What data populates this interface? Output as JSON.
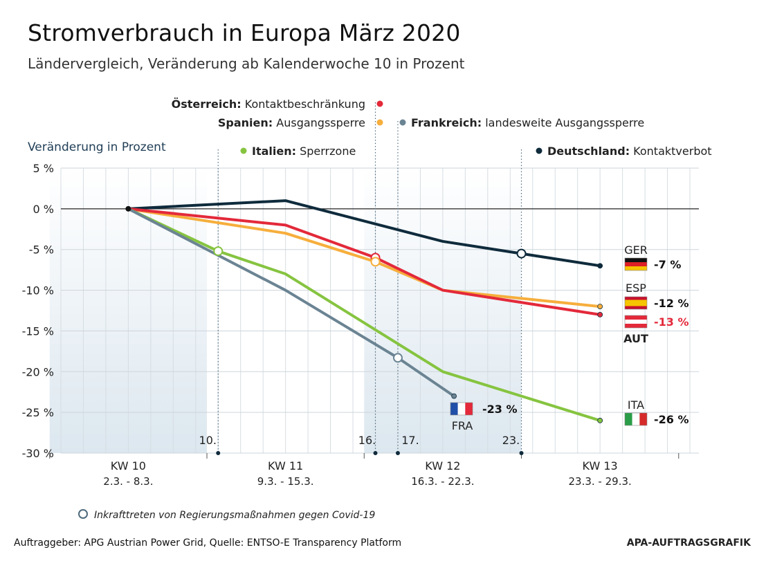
{
  "title": "Stromverbrauch in Europa März 2020",
  "subtitle": "Ländervergleich, Veränderung ab Kalenderwoche 10 in Prozent",
  "footer": {
    "source": "Auftraggeber: APG Austrian Power Grid, Quelle: ENTSO-E Transparency Platform",
    "credit": "APA-AUFTRAGSGRAFIK"
  },
  "legend_note": "Inkrafttreten von Regierungsmaßnahmen gegen Covid-19",
  "chart_data": {
    "type": "line",
    "ylabel": "Veränderung in Prozent",
    "ylim": [
      -30,
      5
    ],
    "yticks": [
      5,
      0,
      -5,
      -10,
      -15,
      -20,
      -25,
      -30
    ],
    "ytick_labels": [
      "5 %",
      "0 %",
      "-5 %",
      "-10 %",
      "-15 %",
      "-20 %",
      "-25 %",
      "-30 %"
    ],
    "x_unit": "Tage März 2020",
    "xlim": [
      1,
      30
    ],
    "weeks": [
      {
        "label": "KW 10",
        "range": "2.3. - 8.3.",
        "x": 5
      },
      {
        "label": "KW 11",
        "range": "9.3. - 15.3.",
        "x": 12
      },
      {
        "label": "KW 12",
        "range": "16.3. - 22.3.",
        "x": 19
      },
      {
        "label": "KW 13",
        "range": "23.3. - 29.3.",
        "x": 26
      }
    ],
    "shaded_weeks": [
      [
        1.5,
        8.5
      ],
      [
        15.5,
        22.5
      ]
    ],
    "grid": true,
    "series": [
      {
        "name": "GER",
        "color": "#0f2b3c",
        "end_label": "-7 %",
        "flag": "germany",
        "points": [
          [
            5,
            0
          ],
          [
            12,
            1
          ],
          [
            19,
            -4
          ],
          [
            22.5,
            -5.5
          ],
          [
            26,
            -7
          ]
        ]
      },
      {
        "name": "ESP",
        "color": "#f6ae3c",
        "end_label": "-12 %",
        "flag": "spain",
        "points": [
          [
            5,
            0
          ],
          [
            12,
            -3
          ],
          [
            16,
            -6.5
          ],
          [
            19,
            -10
          ],
          [
            26,
            -12
          ]
        ]
      },
      {
        "name": "AUT",
        "color": "#e3293a",
        "end_label": "-13 %",
        "flag": "austria",
        "points": [
          [
            5,
            0
          ],
          [
            12,
            -2
          ],
          [
            16,
            -6
          ],
          [
            19,
            -10
          ],
          [
            26,
            -13
          ]
        ]
      },
      {
        "name": "ITA",
        "color": "#86c440",
        "end_label": "-26 %",
        "flag": "italy",
        "points": [
          [
            5,
            0
          ],
          [
            9,
            -5.2
          ],
          [
            12,
            -8
          ],
          [
            19,
            -20
          ],
          [
            26,
            -26
          ]
        ]
      },
      {
        "name": "FRA",
        "color": "#6b8493",
        "end_label": "-23 %",
        "flag": "france",
        "points": [
          [
            5,
            0
          ],
          [
            12,
            -10
          ],
          [
            17,
            -18.3
          ],
          [
            19.5,
            -23
          ]
        ]
      }
    ],
    "events": [
      {
        "day": 10,
        "day_label": "10.",
        "x": 9,
        "y": -5.2,
        "color": "#86c440",
        "label_bold": "Italien:",
        "label_text": "Sperrzone"
      },
      {
        "day": 16,
        "day_label": "16.",
        "x": 16,
        "y": -6,
        "color": "#e3293a",
        "label_bold": "Österreich:",
        "label_text": "Kontaktbeschränkung"
      },
      {
        "day": 16,
        "day_label": "",
        "x": 16,
        "y": -6.5,
        "color": "#f6ae3c",
        "label_bold": "Spanien:",
        "label_text": "Ausgangssperre"
      },
      {
        "day": 17,
        "day_label": "17.",
        "x": 17,
        "y": -18.3,
        "color": "#6b8493",
        "label_bold": "Frankreich:",
        "label_text": "landesweite Ausgangssperre"
      },
      {
        "day": 23,
        "day_label": "23.",
        "x": 22.5,
        "y": -5.5,
        "color": "#0f2b3c",
        "label_bold": "Deutschland:",
        "label_text": "Kontaktverbot"
      }
    ]
  }
}
